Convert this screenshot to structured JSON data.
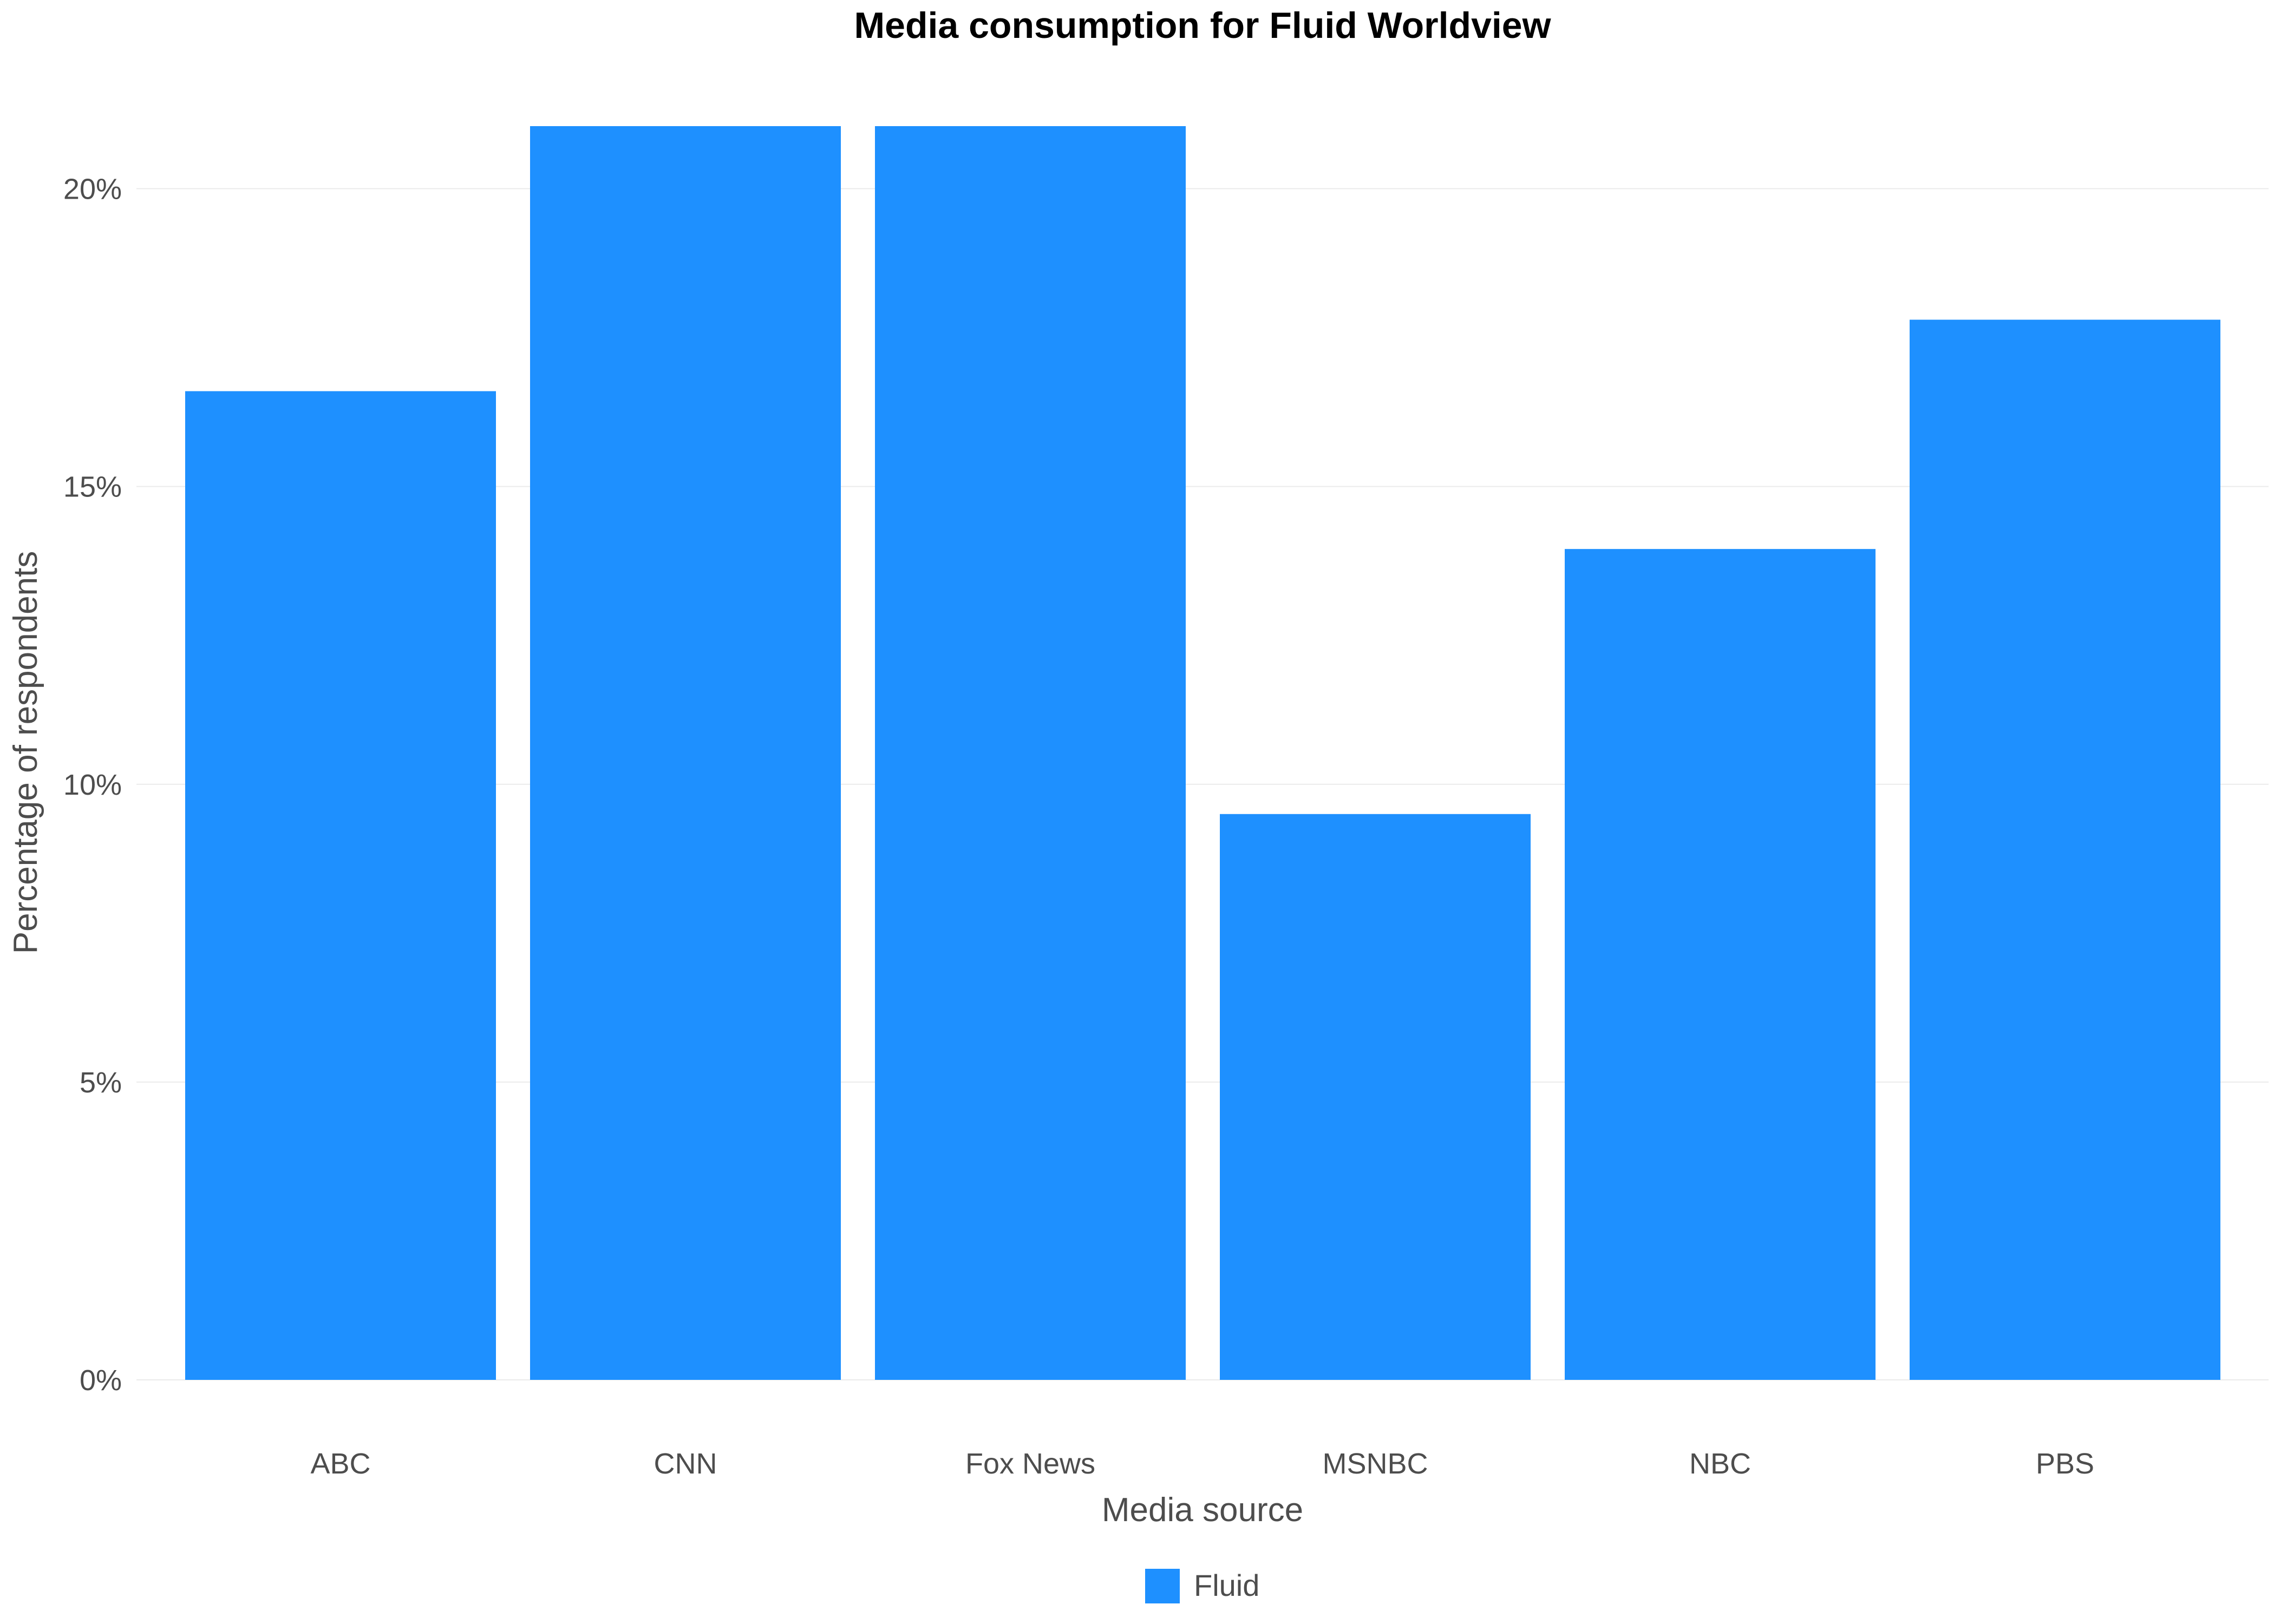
{
  "chart_data": {
    "type": "bar",
    "title": "Media consumption for Fluid Worldview",
    "xlabel": "Media source",
    "ylabel": "Percentage of respondents",
    "categories": [
      "ABC",
      "CNN",
      "Fox News",
      "MSNBC",
      "NBC",
      "PBS"
    ],
    "series": [
      {
        "name": "Fluid",
        "values": [
          16.6,
          21.05,
          21.05,
          9.5,
          13.95,
          17.8
        ],
        "color": "#1E90FF"
      }
    ],
    "ylim": [
      0,
      21.05
    ],
    "yticks": [
      0,
      5,
      10,
      15,
      20
    ],
    "ytick_labels": [
      "0%",
      "5%",
      "10%",
      "15%",
      "20%"
    ],
    "grid": true,
    "legend_position": "bottom"
  }
}
